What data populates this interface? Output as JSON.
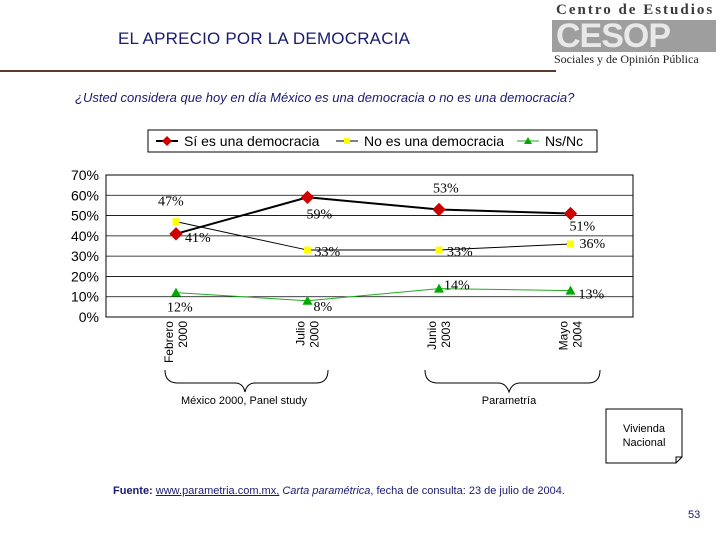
{
  "slide": {
    "title": "EL APRECIO POR LA DEMOCRACIA",
    "question": "¿Usted considera que hoy en día México es una democracia o no es una democracia?",
    "source_label": "Fuente:",
    "source_link": "www.parametria.com.mx,",
    "source_italic": "Carta paramétrica",
    "source_rest": ", fecha de consulta: 23 de julio de 2004.",
    "page_number": "53"
  },
  "logo": {
    "top_text": "Centro de Estudios",
    "mark_text": "CESOP",
    "bottom_text": "Sociales y de Opinión Pública"
  },
  "annotations": {
    "group1": "México 2000, Panel study",
    "group2": "Parametría",
    "note": "Vivienda\nNacional"
  },
  "chart_data": {
    "type": "line",
    "categories": [
      "Febrero 2000",
      "Julio 2000",
      "Junio 2003",
      "Mayo 2004"
    ],
    "category_lines": [
      [
        "Febrero",
        "2000"
      ],
      [
        "Julio",
        "2000"
      ],
      [
        "Junio",
        "2003"
      ],
      [
        "Mayo",
        "2004"
      ]
    ],
    "ylim": [
      0,
      70
    ],
    "yticks": [
      "0%",
      "10%",
      "20%",
      "30%",
      "40%",
      "50%",
      "60%",
      "70%"
    ],
    "series": [
      {
        "name": "Sí es una democracia",
        "color": "#cc0000",
        "marker": "diamond",
        "values": [
          41,
          59,
          53,
          51
        ],
        "labels": [
          "41%",
          "59%",
          "53%",
          "51%"
        ]
      },
      {
        "name": "No es una democracia",
        "color": "#ffff00",
        "marker": "square",
        "values": [
          47,
          33,
          33,
          36
        ],
        "labels": [
          "47%",
          "33%",
          "33%",
          "36%"
        ]
      },
      {
        "name": "Ns/Nc",
        "color": "#00aa00",
        "marker": "triangle",
        "values": [
          12,
          8,
          14,
          13
        ],
        "labels": [
          "12%",
          "8%",
          "14%",
          "13%"
        ]
      }
    ]
  }
}
